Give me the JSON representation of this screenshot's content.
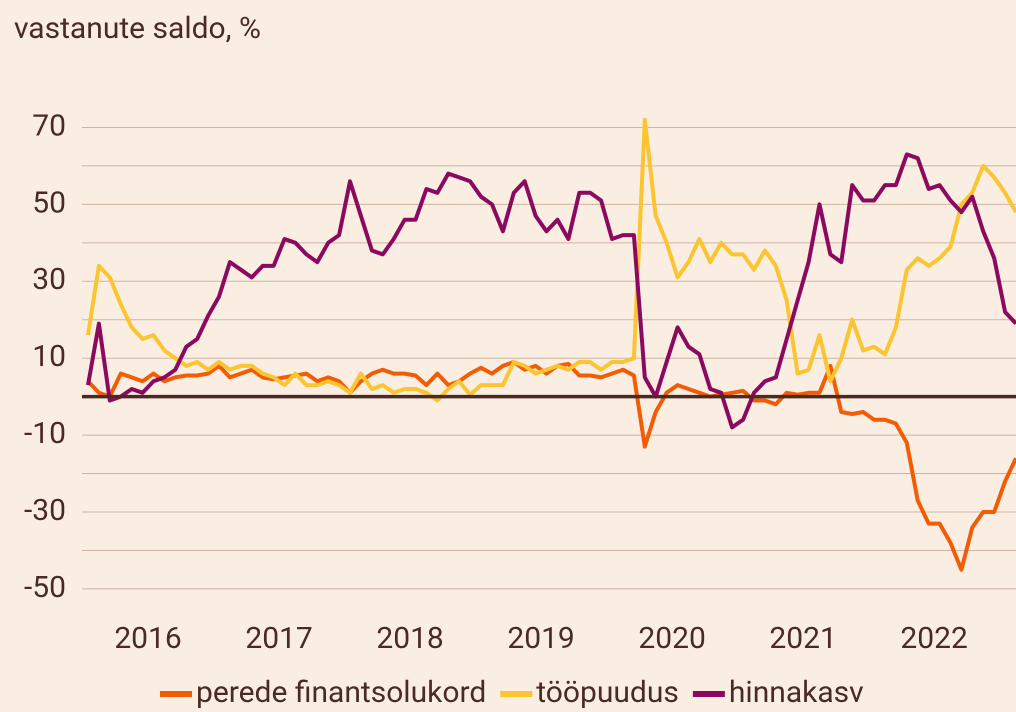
{
  "chart_data": {
    "type": "line",
    "title": "vastanute saldo, %",
    "categories": [
      null,
      null,
      null,
      null,
      null,
      null,
      "2016",
      null,
      null,
      null,
      null,
      null,
      null,
      null,
      null,
      null,
      null,
      null,
      "2017",
      null,
      null,
      null,
      null,
      null,
      null,
      null,
      null,
      null,
      null,
      null,
      "2018",
      null,
      null,
      null,
      null,
      null,
      null,
      null,
      null,
      null,
      null,
      null,
      "2019",
      null,
      null,
      null,
      null,
      null,
      null,
      null,
      null,
      null,
      null,
      null,
      "2020",
      null,
      null,
      null,
      null,
      null,
      null,
      null,
      null,
      null,
      null,
      null,
      "2021",
      null,
      null,
      null,
      null,
      null,
      null,
      null,
      null,
      null,
      null,
      null,
      "2022",
      null,
      null,
      null,
      null,
      null,
      null,
      null
    ],
    "series": [
      {
        "name": "perede finantsolukord",
        "color": "#f25c05",
        "values": [
          4,
          1,
          0,
          6,
          5,
          4,
          6,
          4,
          5,
          5.5,
          5.5,
          6,
          8,
          5,
          6,
          7,
          5,
          4.5,
          5,
          5.5,
          6,
          4,
          5,
          4,
          1,
          4,
          6,
          7,
          6,
          6,
          5.5,
          3,
          6,
          3,
          4,
          6,
          7.5,
          6,
          8,
          9,
          7,
          8,
          6,
          8,
          8.5,
          5.5,
          5.5,
          5,
          6,
          7,
          5.5,
          -13,
          -4,
          1,
          3,
          2,
          1,
          0,
          0.5,
          1,
          1.5,
          -1,
          -1,
          -2,
          1,
          0.5,
          1,
          1,
          8,
          -4,
          -4.5,
          -4,
          -6,
          -6,
          -7,
          -12,
          -27,
          -33,
          -33,
          -38,
          -45,
          -34,
          -30,
          -30,
          -22,
          -16
        ]
      },
      {
        "name": "tööpuudus",
        "color": "#fbc531",
        "values": [
          16,
          34,
          31,
          24,
          18,
          15,
          16,
          12,
          10,
          8,
          9,
          7,
          9,
          7,
          8,
          8,
          6,
          5,
          3,
          6,
          3,
          3,
          4,
          3,
          1,
          6,
          2,
          3,
          1,
          2,
          2,
          1,
          -1,
          2,
          4,
          0.5,
          3,
          3,
          3,
          9,
          8,
          6,
          7,
          8,
          7,
          9,
          9,
          7,
          9,
          9,
          10,
          72,
          47,
          40,
          31,
          35,
          41,
          35,
          40,
          37,
          37,
          33,
          38,
          34,
          25,
          6,
          7,
          16,
          4,
          10,
          20,
          12,
          13,
          11,
          18,
          33,
          36,
          34,
          36,
          39,
          50,
          53,
          60,
          57,
          53,
          48
        ]
      },
      {
        "name": "hinnakasv",
        "color": "#8b0a5f",
        "values": [
          3,
          19,
          -1,
          0,
          2,
          1,
          4,
          5,
          7,
          13,
          15,
          21,
          26,
          35,
          33,
          31,
          34,
          34,
          41,
          40,
          37,
          35,
          40,
          42,
          56,
          47,
          38,
          37,
          41,
          46,
          46,
          54,
          53,
          58,
          57,
          56,
          52,
          50,
          43,
          53,
          56,
          47,
          43,
          46,
          41,
          53,
          53,
          51,
          41,
          42,
          42,
          5,
          0,
          9,
          18,
          13,
          11,
          2,
          1,
          -8,
          -6,
          1,
          4,
          5,
          15,
          25,
          35,
          50,
          37,
          35,
          55,
          51,
          51,
          55,
          55,
          63,
          62,
          54,
          55,
          51,
          48,
          52,
          43,
          36,
          22,
          19
        ]
      }
    ],
    "ylim": [
      -56,
      80
    ],
    "yticks": [
      70,
      50,
      30,
      10,
      -10,
      -30,
      -50
    ],
    "minor_yticks": [
      60,
      40,
      20,
      -20,
      -40
    ],
    "zero_line": 0,
    "grid": true
  }
}
